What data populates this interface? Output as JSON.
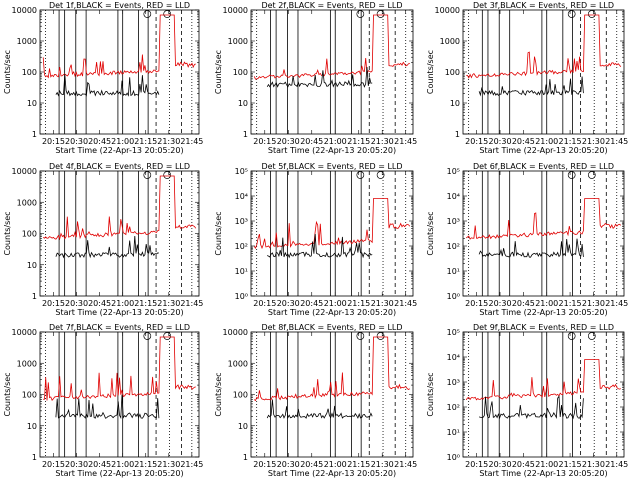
{
  "chart_data": [
    {
      "title": "Det 1f,BLACK = Events, RED = LLD",
      "yticks": [
        "1",
        "10",
        "100",
        "1000",
        "10000"
      ],
      "ylabel": "Counts/sec",
      "xticks": [
        "20:15",
        "20:30",
        "20:45",
        "21:00",
        "21:15",
        "21:30",
        "21:45"
      ],
      "xlabel": "Start Time (22-Apr-13 20:05:20)"
    },
    {
      "title": "Det 2f,BLACK = Events, RED = LLD",
      "yticks": [
        "1",
        "10",
        "100",
        "1000",
        "10000"
      ],
      "ylabel": "Counts/sec",
      "xticks": [
        "20:15",
        "20:30",
        "20:45",
        "21:00",
        "21:15",
        "21:30",
        "21:45"
      ],
      "xlabel": "Start Time (22-Apr-13 20:05:20)"
    },
    {
      "title": "Det 3f,BLACK = Events, RED = LLD",
      "yticks": [
        "1",
        "10",
        "100",
        "1000",
        "10000"
      ],
      "ylabel": "Counts/sec",
      "xticks": [
        "20:15",
        "20:30",
        "20:45",
        "21:00",
        "21:15",
        "21:30",
        "21:45"
      ],
      "xlabel": "Start Time (22-Apr-13 20:05:20)"
    },
    {
      "title": "Det 4f,BLACK = Events, RED = LLD",
      "yticks": [
        "1",
        "10",
        "100",
        "1000",
        "10000"
      ],
      "ylabel": "Counts/sec",
      "xticks": [
        "20:15",
        "20:30",
        "20:45",
        "21:00",
        "21:15",
        "21:30",
        "21:45"
      ],
      "xlabel": "Start Time (22-Apr-13 20:05:20)"
    },
    {
      "title": "Det 5f,BLACK = Events, RED = LLD",
      "yticks": [
        "10⁰",
        "10¹",
        "10²",
        "10³",
        "10⁴",
        "10⁵"
      ],
      "ylabel": "Counts/sec",
      "xticks": [
        "20:15",
        "20:30",
        "20:45",
        "21:00",
        "21:15",
        "21:30",
        "21:45"
      ],
      "xlabel": "Start Time (22-Apr-13 20:05:20)"
    },
    {
      "title": "Det 6f,BLACK = Events, RED = LLD",
      "yticks": [
        "10⁰",
        "10¹",
        "10²",
        "10³",
        "10⁴",
        "10⁵"
      ],
      "ylabel": "Counts/sec",
      "xticks": [
        "20:15",
        "20:30",
        "20:45",
        "21:00",
        "21:15",
        "21:30",
        "21:45"
      ],
      "xlabel": "Start Time (22-Apr-13 20:05:20)"
    },
    {
      "title": "Det 7f,BLACK = Events, RED = LLD",
      "yticks": [
        "1",
        "10",
        "100",
        "1000",
        "10000"
      ],
      "ylabel": "Counts/sec",
      "xticks": [
        "20:15",
        "20:30",
        "20:45",
        "21:00",
        "21:15",
        "21:30",
        "21:45"
      ],
      "xlabel": "Start Time (22-Apr-13 20:05:20)"
    },
    {
      "title": "Det 8f,BLACK = Events, RED = LLD",
      "yticks": [
        "1",
        "10",
        "100",
        "1000",
        "10000"
      ],
      "ylabel": "Counts/sec",
      "xticks": [
        "20:15",
        "20:30",
        "20:45",
        "21:00",
        "21:15",
        "21:30",
        "21:45"
      ],
      "xlabel": "Start Time (22-Apr-13 20:05:20)"
    },
    {
      "title": "Det 9f,BLACK = Events, RED = LLD",
      "yticks": [
        "10⁰",
        "10¹",
        "10²",
        "10³",
        "10⁴",
        "10⁵"
      ],
      "ylabel": "Counts/sec",
      "xticks": [
        "20:15",
        "20:30",
        "20:45",
        "21:00",
        "21:15",
        "21:30",
        "21:45"
      ],
      "xlabel": "Start Time (22-Apr-13 20:05:20)"
    }
  ]
}
